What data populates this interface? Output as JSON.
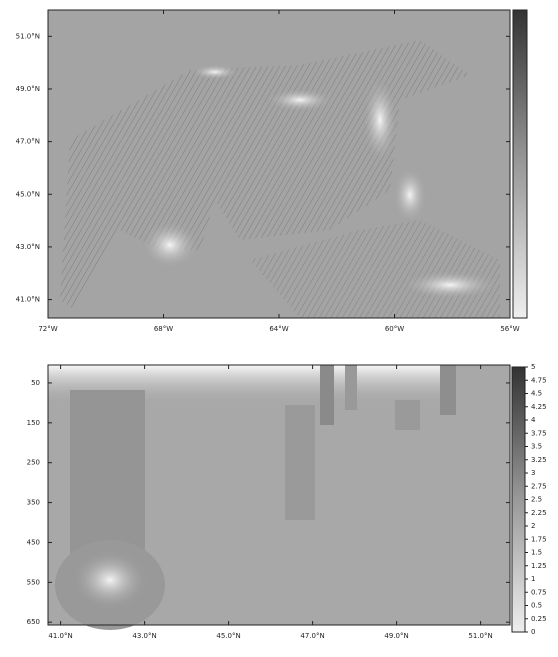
{
  "chart_data": [
    {
      "type": "map",
      "xlim": [
        -72,
        -56
      ],
      "xticks": [
        {
          "value": -72,
          "label": "72°W"
        },
        {
          "value": -68,
          "label": "68°W"
        },
        {
          "value": -64,
          "label": "64°W"
        },
        {
          "value": -60,
          "label": "60°W"
        },
        {
          "value": -56,
          "label": "56°W"
        }
      ],
      "ylim": [
        40.3,
        52
      ],
      "yticks": [
        {
          "value": 41,
          "label": "41.0°N"
        },
        {
          "value": 43,
          "label": "43.0°N"
        },
        {
          "value": 45,
          "label": "45.0°N"
        },
        {
          "value": 47,
          "label": "47.0°N"
        },
        {
          "value": 49,
          "label": "49.0°N"
        },
        {
          "value": 51,
          "label": "51.0°N"
        }
      ]
    },
    {
      "type": "section",
      "xlim": [
        40.7,
        51.7
      ],
      "xticks": [
        {
          "value": 41,
          "label": "41.0°N"
        },
        {
          "value": 43,
          "label": "43.0°N"
        },
        {
          "value": 45,
          "label": "45.0°N"
        },
        {
          "value": 47,
          "label": "47.0°N"
        },
        {
          "value": 49,
          "label": "49.0°N"
        },
        {
          "value": 51,
          "label": "51.0°N"
        }
      ],
      "ylim": [
        5,
        657
      ],
      "y_inverted": true,
      "yticks": [
        50,
        150,
        250,
        350,
        450,
        550,
        650
      ],
      "clim": [
        0,
        5
      ],
      "cticks": [
        0,
        0.25,
        0.5,
        0.75,
        1,
        1.25,
        1.5,
        1.75,
        2,
        2.25,
        2.5,
        2.75,
        3,
        3.25,
        3.5,
        3.75,
        4,
        4.25,
        4.5,
        4.75,
        5
      ]
    }
  ]
}
